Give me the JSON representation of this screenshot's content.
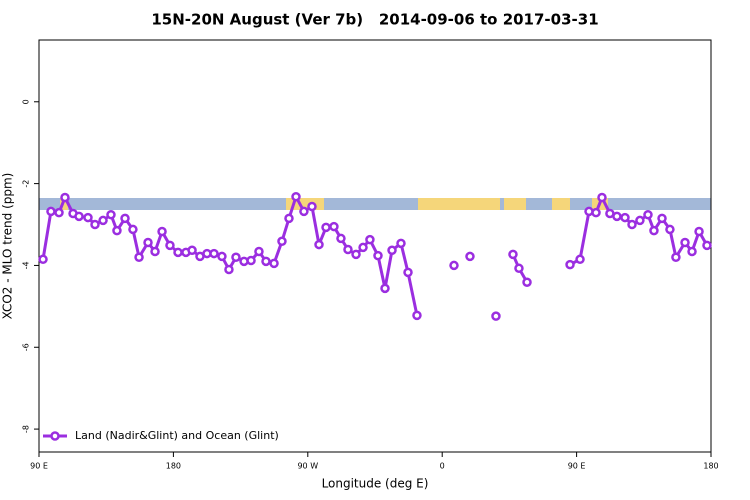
{
  "chart_data": {
    "type": "line",
    "title": "15N-20N August (Ver 7b)   2014-09-06 to 2017-03-31",
    "x_label": "Longitude (deg E)",
    "y_label": "XCO2 - MLO trend (ppm)",
    "xlim": [
      90,
      540
    ],
    "xticks": [
      {
        "value": 90,
        "label": "90 E"
      },
      180,
      {
        "value": 270,
        "label": "90 W"
      },
      {
        "value": 360,
        "label": "0"
      },
      {
        "value": 450,
        "label": "90 E"
      },
      {
        "value": 540,
        "label": "180"
      }
    ],
    "ylim": [
      -8.56,
      1.51
    ],
    "yticks": [
      0,
      -2,
      -4,
      -6,
      -8
    ],
    "legend": "bottom-left",
    "x": [
      92.7,
      98,
      103.4,
      107.4,
      112.8,
      116.8,
      122.8,
      127.5,
      132.9,
      138.2,
      142.2,
      147.6,
      152.9,
      157,
      163,
      167.7,
      172.4,
      177.7,
      183.1,
      188.4,
      192.5,
      197.8,
      202.5,
      207.2,
      212.5,
      217.2,
      221.9,
      227.3,
      232,
      237.3,
      242,
      247.4,
      252.7,
      257.4,
      262.1,
      267.4,
      272.8,
      277.5,
      282.2,
      287.5,
      292.2,
      296.9,
      302.3,
      307,
      311.6,
      317,
      321.7,
      326.4,
      332.4,
      337.1,
      343.1,
      null,
      367.9,
      null,
      378.6,
      null,
      396,
      null,
      407.4,
      411.4,
      416.8,
      null,
      445.6,
      452.3,
      458.3,
      463,
      467,
      472.3,
      477,
      482.4,
      487.1,
      492.4,
      497.8,
      501.8,
      507.2,
      512.5,
      516.5,
      522.6,
      527.3,
      532,
      537.3
    ],
    "series": [
      {
        "name": "Land (Nadir&Glint) and Ocean (Glint)",
        "color": "#9b2ee0",
        "values": [
          -3.85,
          -2.68,
          -2.71,
          -2.34,
          -2.73,
          -2.8,
          -2.83,
          -3.0,
          -2.9,
          -2.76,
          -3.15,
          -2.85,
          -3.12,
          -3.8,
          -3.44,
          -3.66,
          -3.17,
          -3.51,
          -3.68,
          -3.68,
          -3.63,
          -3.78,
          -3.71,
          -3.71,
          -3.78,
          -4.1,
          -3.8,
          -3.9,
          -3.88,
          -3.66,
          -3.9,
          -3.95,
          -3.41,
          -2.85,
          -2.32,
          -2.68,
          -2.56,
          -3.49,
          -3.07,
          -3.05,
          -3.34,
          -3.61,
          -3.73,
          -3.56,
          -3.37,
          -3.76,
          -4.56,
          -3.63,
          -3.46,
          -4.17,
          -5.22,
          null,
          -4.0,
          null,
          -3.78,
          null,
          -5.24,
          null,
          -3.73,
          -4.07,
          -4.41,
          null,
          -3.98,
          -3.85,
          -2.68,
          -2.71,
          -2.34,
          -2.73,
          -2.8,
          -2.83,
          -3.0,
          -2.9,
          -2.76,
          -3.15,
          -2.85,
          -3.12,
          -3.8,
          -3.44,
          -3.66,
          -3.17,
          -3.51
        ]
      }
    ]
  }
}
